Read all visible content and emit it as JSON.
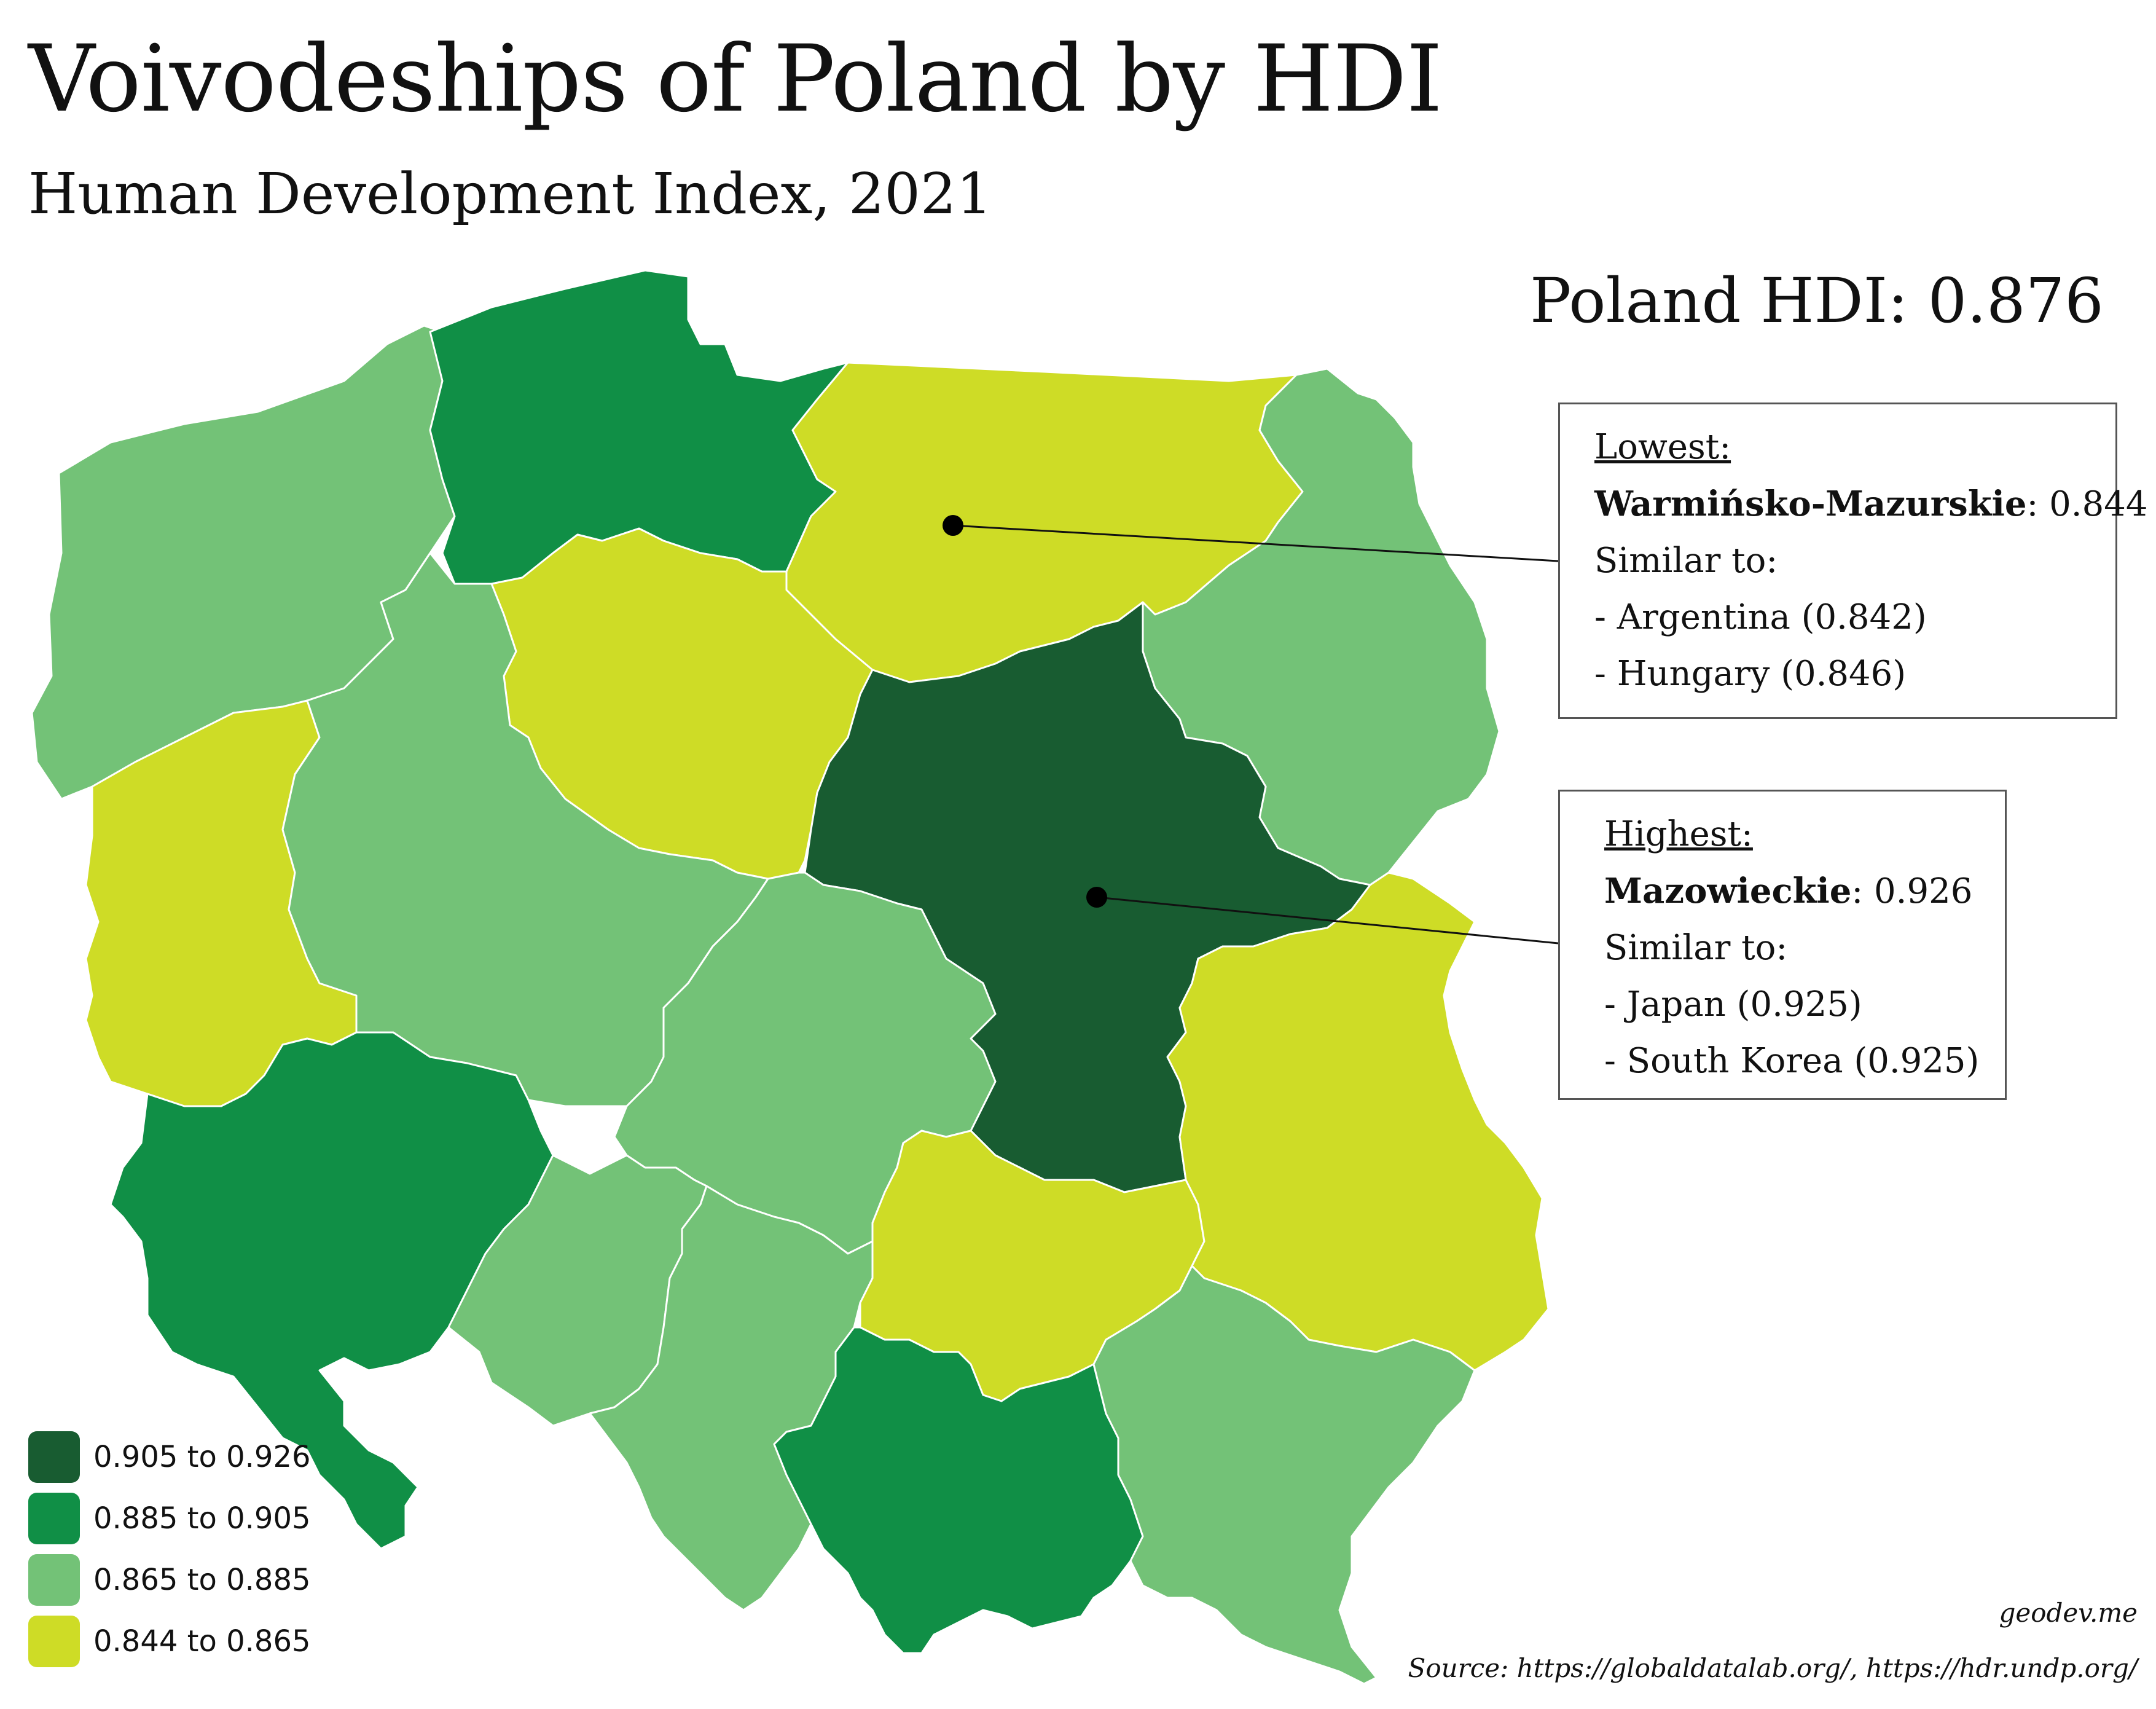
{
  "title": "Voivodeships of Poland by HDI",
  "subtitle": "Human Development Index, 2021",
  "national": "Poland HDI: 0.876",
  "legend": [
    {
      "label": "0.905 to 0.926",
      "color": "#185c31"
    },
    {
      "label": "0.885 to 0.905",
      "color": "#108f46"
    },
    {
      "label": "0.865 to 0.885",
      "color": "#73c277"
    },
    {
      "label": "0.844 to 0.865",
      "color": "#cedc26"
    }
  ],
  "lowest": {
    "heading": "Lowest:",
    "region": "Warmińsko-Mazurskie",
    "value": ": 0.844",
    "similar_label": "Similar to:",
    "similar": [
      "- Argentina (0.842)",
      "- Hungary (0.846)"
    ]
  },
  "highest": {
    "heading": "Highest:",
    "region": "Mazowieckie",
    "value": ": 0.926",
    "similar_label": "Similar to:",
    "similar": [
      "- Japan (0.925)",
      "- South Korea (0.925)"
    ]
  },
  "credits": {
    "site": "geodev.me",
    "source": "Source: https://globaldatalab.org/, https://hdr.undp.org/"
  }
}
